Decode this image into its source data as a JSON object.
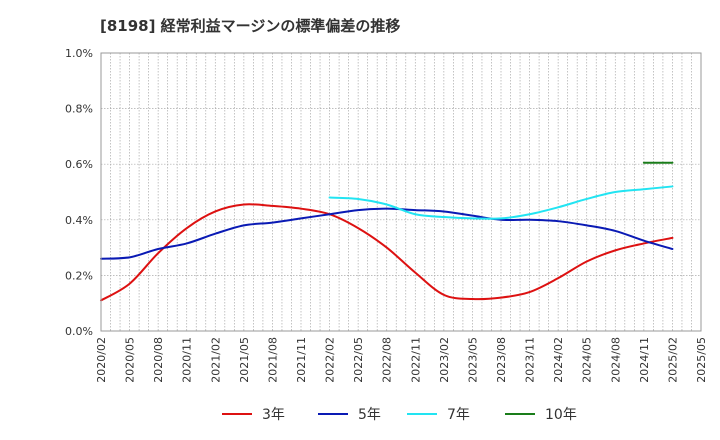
{
  "chart_data": {
    "type": "line",
    "title": "[8198]  経常利益マージンの標準偏差の推移",
    "xlabel": "",
    "ylabel": "",
    "ylim": [
      0,
      1.0
    ],
    "y_ticks": [
      "0.0%",
      "0.2%",
      "0.4%",
      "0.6%",
      "0.8%",
      "1.0%"
    ],
    "x_ticks": [
      "2020/02",
      "2020/05",
      "2020/08",
      "2020/11",
      "2021/02",
      "2021/05",
      "2021/08",
      "2021/11",
      "2022/02",
      "2022/05",
      "2022/08",
      "2022/11",
      "2023/02",
      "2023/05",
      "2023/08",
      "2023/11",
      "2024/02",
      "2024/05",
      "2024/08",
      "2024/11",
      "2025/02",
      "2025/05"
    ],
    "grid": true,
    "legend_position": "bottom",
    "series": [
      {
        "name": "3年",
        "color": "#dd1111",
        "points": [
          [
            "2020/02",
            0.11
          ],
          [
            "2020/05",
            0.17
          ],
          [
            "2020/08",
            0.28
          ],
          [
            "2020/11",
            0.37
          ],
          [
            "2021/02",
            0.43
          ],
          [
            "2021/05",
            0.455
          ],
          [
            "2021/08",
            0.45
          ],
          [
            "2021/11",
            0.44
          ],
          [
            "2022/02",
            0.42
          ],
          [
            "2022/05",
            0.37
          ],
          [
            "2022/08",
            0.3
          ],
          [
            "2022/11",
            0.21
          ],
          [
            "2023/02",
            0.13
          ],
          [
            "2023/05",
            0.115
          ],
          [
            "2023/08",
            0.12
          ],
          [
            "2023/11",
            0.14
          ],
          [
            "2024/02",
            0.19
          ],
          [
            "2024/05",
            0.25
          ],
          [
            "2024/08",
            0.29
          ],
          [
            "2024/11",
            0.315
          ],
          [
            "2025/02",
            0.335
          ]
        ]
      },
      {
        "name": "5年",
        "color": "#0a1ab4",
        "points": [
          [
            "2020/02",
            0.26
          ],
          [
            "2020/05",
            0.265
          ],
          [
            "2020/08",
            0.295
          ],
          [
            "2020/11",
            0.315
          ],
          [
            "2021/02",
            0.35
          ],
          [
            "2021/05",
            0.38
          ],
          [
            "2021/08",
            0.39
          ],
          [
            "2021/11",
            0.405
          ],
          [
            "2022/02",
            0.42
          ],
          [
            "2022/05",
            0.435
          ],
          [
            "2022/08",
            0.44
          ],
          [
            "2022/11",
            0.435
          ],
          [
            "2023/02",
            0.43
          ],
          [
            "2023/05",
            0.415
          ],
          [
            "2023/08",
            0.4
          ],
          [
            "2023/11",
            0.4
          ],
          [
            "2024/02",
            0.395
          ],
          [
            "2024/05",
            0.38
          ],
          [
            "2024/08",
            0.36
          ],
          [
            "2024/11",
            0.325
          ],
          [
            "2025/02",
            0.295
          ]
        ]
      },
      {
        "name": "7年",
        "color": "#22e4f2",
        "points": [
          [
            "2022/02",
            0.48
          ],
          [
            "2022/05",
            0.475
          ],
          [
            "2022/08",
            0.455
          ],
          [
            "2022/11",
            0.42
          ],
          [
            "2023/02",
            0.41
          ],
          [
            "2023/05",
            0.405
          ],
          [
            "2023/08",
            0.405
          ],
          [
            "2023/11",
            0.42
          ],
          [
            "2024/02",
            0.445
          ],
          [
            "2024/05",
            0.475
          ],
          [
            "2024/08",
            0.5
          ],
          [
            "2024/11",
            0.51
          ],
          [
            "2025/02",
            0.52
          ]
        ]
      },
      {
        "name": "10年",
        "color": "#1a7d1a",
        "points": [
          [
            "2024/11",
            0.605
          ],
          [
            "2025/02",
            0.605
          ]
        ]
      }
    ]
  }
}
